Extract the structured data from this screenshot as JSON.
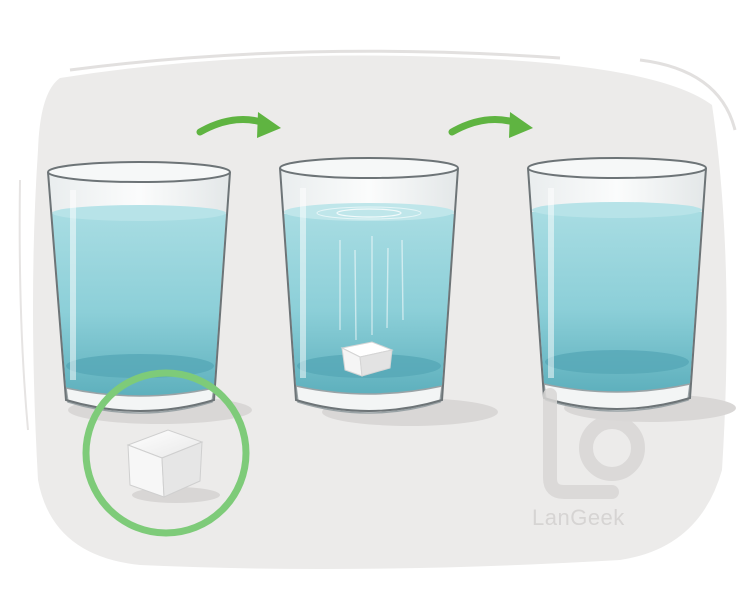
{
  "brand": {
    "watermark_text": "LanGeek"
  },
  "colors": {
    "background_blob": "#ecebea",
    "water": "#8fd0d8",
    "water_dark": "#5fb3bf",
    "glass_outline": "#6d7477",
    "arrow": "#5fb441",
    "highlight_circle": "#7ecb79",
    "sugar_cube": "#f4f4f4"
  },
  "scene": {
    "steps": [
      {
        "name": "glass-1",
        "state": "water-with-sugar-cube-outside"
      },
      {
        "name": "glass-2",
        "state": "sugar-cube-dissolving-at-bottom"
      },
      {
        "name": "glass-3",
        "state": "sugar-fully-dissolved"
      }
    ],
    "arrows": [
      "arrow-icon",
      "arrow-icon"
    ],
    "highlight": "sugar-cube-circled"
  }
}
